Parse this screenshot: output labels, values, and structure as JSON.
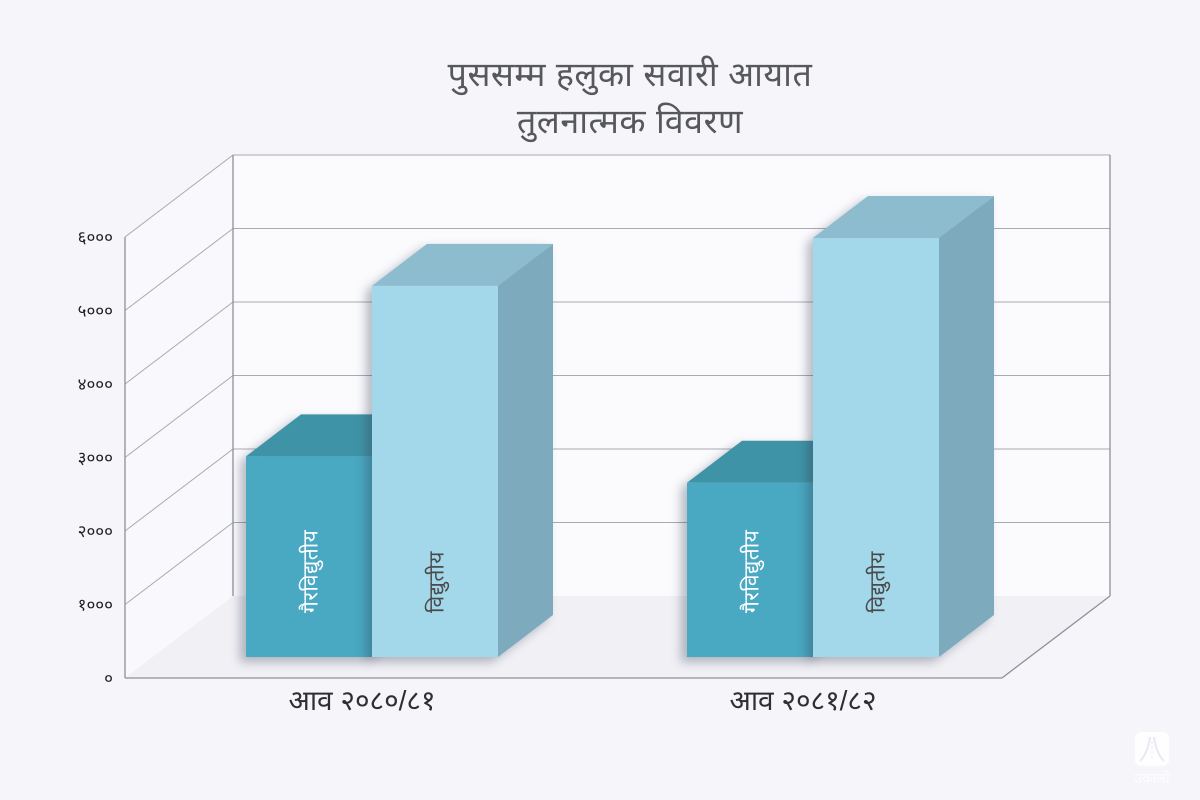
{
  "page": {
    "background": "#f5f5fa"
  },
  "chart_data": {
    "type": "bar",
    "projection": "3d",
    "title": "पुससम्म हलुका सवारी आयात तुलनात्मक विवरण",
    "title_lines": [
      "पुससम्म हलुका सवारी आयात",
      "तुलनात्मक विवरण"
    ],
    "categories": [
      "आव २०८०/८१",
      "आव २०८१/८२"
    ],
    "series": [
      {
        "name": "गैरविद्युतीय",
        "values": [
          2730,
          2370
        ],
        "front_color": "#49a8c2",
        "top_color": "#3f93a6",
        "side_color": "#38889e",
        "label_color": "#ffffff"
      },
      {
        "name": "विद्युतीय",
        "values": [
          5050,
          5700
        ],
        "front_color": "#a3d7ea",
        "top_color": "#8cbccd",
        "side_color": "#7dabbd",
        "label_color": "#4a4a4a"
      }
    ],
    "y_ticks": [
      {
        "value": 0,
        "label": "०"
      },
      {
        "value": 1000,
        "label": "१०००"
      },
      {
        "value": 2000,
        "label": "२०००"
      },
      {
        "value": 3000,
        "label": "३०००"
      },
      {
        "value": 4000,
        "label": "४०००"
      },
      {
        "value": 5000,
        "label": "५०००"
      },
      {
        "value": 6000,
        "label": "६०००"
      }
    ],
    "ylim": [
      0,
      6000
    ],
    "grid": true,
    "legend": "labels-on-bars",
    "colors": {
      "grid_line": "#a9aab2",
      "frame_line": "#8f9098",
      "wall": "#fbfbfe",
      "floor": "#f0f0f5"
    }
  },
  "watermark": {
    "text": "उकालो"
  }
}
